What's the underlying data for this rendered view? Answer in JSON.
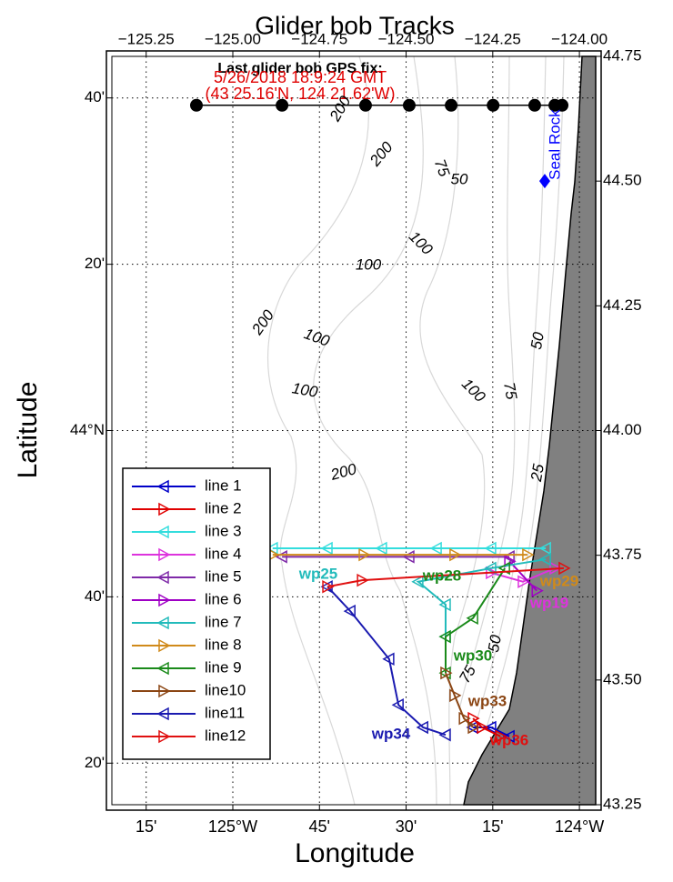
{
  "chart_data": {
    "type": "map-tracks",
    "title": "Glider bob Tracks",
    "x_label": "Longitude",
    "y_label": "Latitude",
    "xlim": [
      -125.349,
      -123.953
    ],
    "ylim": [
      43.25,
      44.75
    ],
    "xticks": [
      {
        "value": -125.25,
        "label": "−125.25"
      },
      {
        "value": -125.0,
        "label": "−125.00"
      },
      {
        "value": -124.75,
        "label": "−124.75"
      },
      {
        "value": -124.5,
        "label": "−124.50"
      },
      {
        "value": -124.25,
        "label": "−124.25"
      },
      {
        "value": -124.0,
        "label": "−124.00"
      }
    ],
    "xticks_bottom": [
      {
        "value": -125.25,
        "label": "15'"
      },
      {
        "value": -125.0,
        "label": "125°W"
      },
      {
        "value": -124.75,
        "label": "45'"
      },
      {
        "value": -124.5,
        "label": "30'"
      },
      {
        "value": -124.25,
        "label": "15'"
      },
      {
        "value": -124.0,
        "label": "124°W"
      }
    ],
    "yticks": [
      {
        "value": 44.75,
        "label": "44.75"
      },
      {
        "value": 44.5,
        "label": "44.50"
      },
      {
        "value": 44.25,
        "label": "44.25"
      },
      {
        "value": 44.0,
        "label": "44.00"
      },
      {
        "value": 43.75,
        "label": "43.75"
      },
      {
        "value": 43.5,
        "label": "43.50"
      },
      {
        "value": 43.25,
        "label": "43.25"
      }
    ],
    "yticks_left": [
      {
        "value": 44.6667,
        "label": "40'"
      },
      {
        "value": 44.3333,
        "label": "20'"
      },
      {
        "value": 44.0,
        "label": "44°N"
      },
      {
        "value": 43.6667,
        "label": "40'"
      },
      {
        "value": 43.3333,
        "label": "20'"
      }
    ],
    "grid": true,
    "legend": "lower left",
    "fix_text": [
      "Last glider bob GPS fix:",
      "5/26/2018 18:9:24 GMT",
      "(43 25.16'N, 124 21.62'W)"
    ],
    "place_label": {
      "text": "Seal Rock",
      "color": "#0000ff",
      "x": -124.1,
      "y": 44.5
    },
    "stations": {
      "color": "#000000",
      "x": [
        -125.105,
        -124.858,
        -124.617,
        -124.491,
        -124.37,
        -124.249,
        -124.129,
        -124.071,
        -124.05
      ],
      "y": [
        44.652,
        44.652,
        44.652,
        44.652,
        44.652,
        44.652,
        44.652,
        44.652,
        44.652
      ]
    },
    "contour_labels": [
      "200",
      "200",
      "75",
      "50",
      "100",
      "100",
      "200",
      "100",
      "100",
      "100",
      "75",
      "50",
      "200",
      "25",
      "75",
      "50"
    ],
    "waypoints": [
      {
        "text": "wp25",
        "color": "#22bbbb"
      },
      {
        "text": "wp28",
        "color": "#1a8a1a"
      },
      {
        "text": "wp34",
        "color": "#1a1ab0"
      },
      {
        "text": "wp19",
        "color": "#dd33dd"
      },
      {
        "text": "wp30",
        "color": "#1a8a1a"
      },
      {
        "text": "wp33",
        "color": "#8b4513"
      },
      {
        "text": "wp36",
        "color": "#e01010"
      },
      {
        "text": "wp29",
        "color": "#d08a1a"
      }
    ],
    "series": [
      {
        "name": "line 1",
        "color": "#0000c8",
        "marker": "left",
        "x": [
          -124.307,
          -124.255,
          -124.202
        ],
        "y": [
          43.405,
          43.405,
          43.387
        ]
      },
      {
        "name": "line 2",
        "color": "#e00000",
        "marker": "right",
        "x": [
          -124.307,
          -124.281,
          -124.228
        ],
        "y": [
          43.423,
          43.405,
          43.387
        ]
      },
      {
        "name": "line 3",
        "color": "#33dddd",
        "marker": "left",
        "x": [
          -124.097,
          -124.255,
          -124.412,
          -124.57,
          -124.727,
          -124.885
        ],
        "y": [
          43.764,
          43.764,
          43.764,
          43.764,
          43.764,
          43.764
        ]
      },
      {
        "name": "line 4",
        "color": "#dd33dd",
        "marker": "right",
        "x": [
          -124.255,
          -124.163,
          -124.071
        ],
        "y": [
          43.715,
          43.697,
          43.724
        ]
      },
      {
        "name": "line 5",
        "color": "#7f2aa8",
        "marker": "left",
        "x": [
          -124.202,
          -124.491,
          -124.858
        ],
        "y": [
          43.747,
          43.747,
          43.747
        ]
      },
      {
        "name": "line 6",
        "color": "#9f00c5",
        "marker": "right",
        "x": [
          -124.202,
          -124.123
        ],
        "y": [
          43.738,
          43.679
        ]
      },
      {
        "name": "line 7",
        "color": "#22bbbb",
        "marker": "left",
        "x": [
          -124.097,
          -124.255,
          -124.465,
          -124.386,
          -124.386
        ],
        "y": [
          43.742,
          43.724,
          43.697,
          43.651,
          43.587
        ]
      },
      {
        "name": "line 8",
        "color": "#d08a1a",
        "marker": "right",
        "x": [
          -124.885,
          -124.622,
          -124.36,
          -124.15
        ],
        "y": [
          43.751,
          43.751,
          43.751,
          43.751
        ]
      },
      {
        "name": "line 9",
        "color": "#1a8a1a",
        "marker": "left",
        "x": [
          -124.215,
          -124.307,
          -124.386,
          -124.386
        ],
        "y": [
          43.724,
          43.624,
          43.587,
          43.514
        ]
      },
      {
        "name": "line10",
        "color": "#8b4513",
        "marker": "right",
        "x": [
          -124.386,
          -124.36,
          -124.333,
          -124.307
        ],
        "y": [
          43.514,
          43.469,
          43.423,
          43.405
        ]
      },
      {
        "name": "line11",
        "color": "#1a1ab0",
        "marker": "left",
        "x": [
          -124.386,
          -124.451,
          -124.522,
          -124.549,
          -124.661,
          -124.727
        ],
        "y": [
          43.39,
          43.405,
          43.45,
          43.542,
          43.638,
          43.687
        ]
      },
      {
        "name": "line12",
        "color": "#e01010",
        "marker": "right",
        "x": [
          -124.727,
          -124.627,
          -124.045
        ],
        "y": [
          43.687,
          43.7,
          43.724
        ]
      }
    ]
  }
}
